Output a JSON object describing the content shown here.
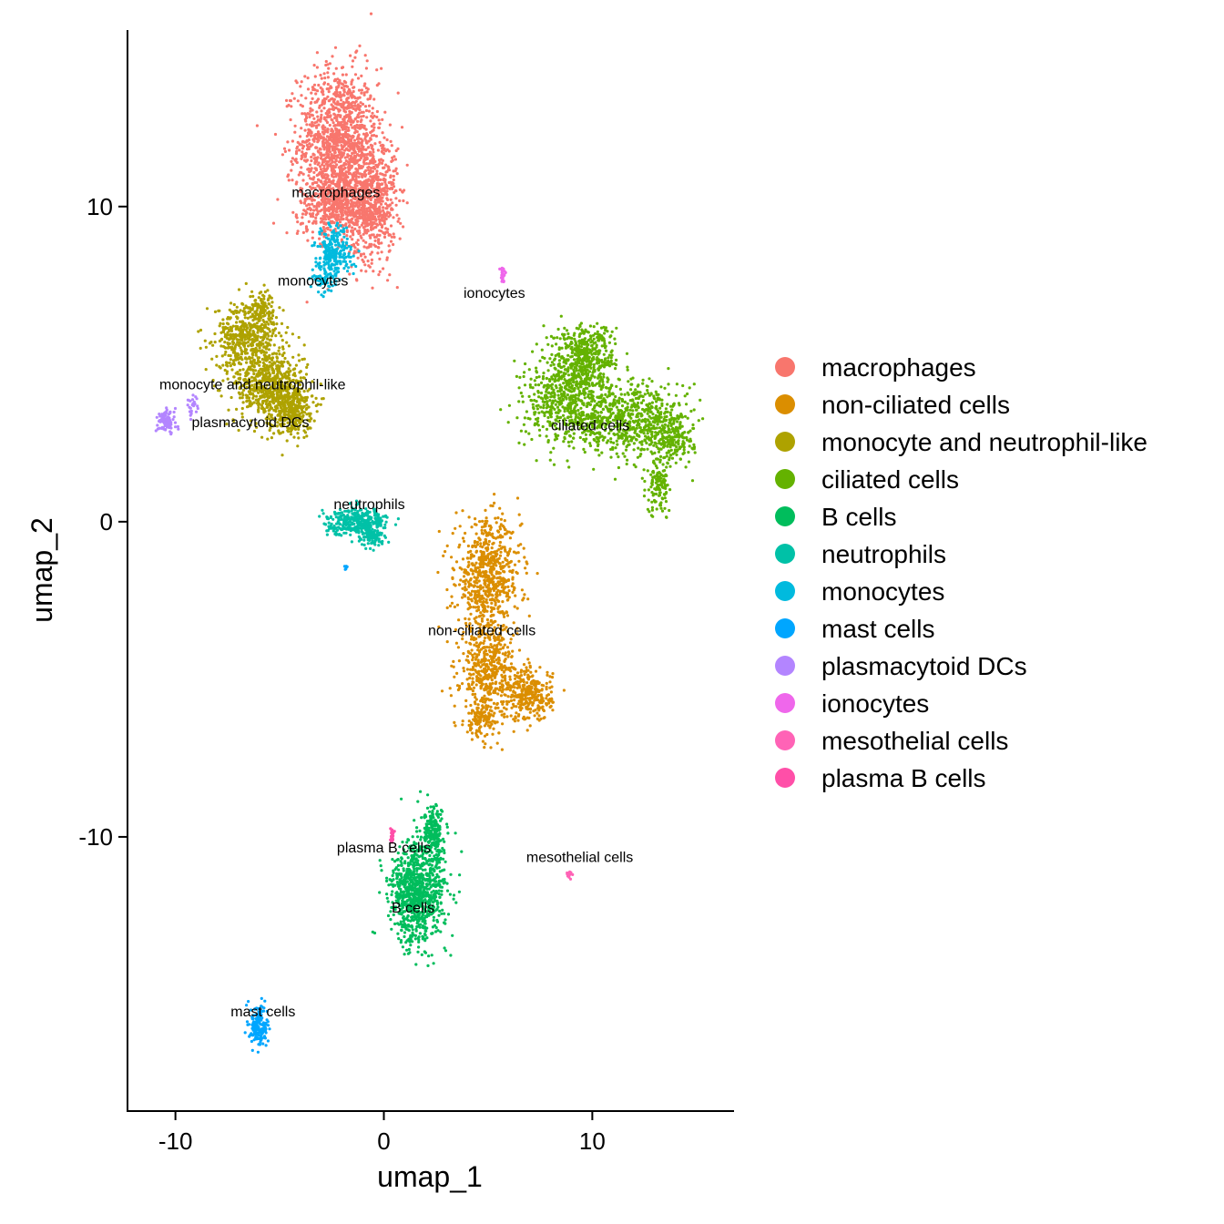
{
  "chart_data": {
    "type": "scatter",
    "title": "",
    "xlabel": "umap_1",
    "ylabel": "umap_2",
    "xlim": [
      -12.3,
      16.8
    ],
    "ylim": [
      -18.7,
      15.6
    ],
    "xticks": [
      -10,
      0,
      10
    ],
    "yticks": [
      -10,
      0,
      10
    ],
    "xtick_labels": [
      "-10",
      "0",
      "10"
    ],
    "ytick_labels": [
      "-10",
      "0",
      "10"
    ],
    "grid": false,
    "legend_position": "right",
    "series": [
      {
        "name": "macrophages",
        "color": "#F8766D",
        "label_at": [
          -2.3,
          10.3
        ],
        "blobs": [
          [
            -2.2,
            12.0,
            1.6,
            2.0,
            1300
          ],
          [
            -0.6,
            10.2,
            1.0,
            1.6,
            700
          ],
          [
            -2.4,
            10.0,
            1.4,
            0.8,
            400
          ]
        ]
      },
      {
        "name": "non-ciliated cells",
        "color": "#DB8E00",
        "label_at": [
          4.7,
          -3.6
        ],
        "blobs": [
          [
            5.0,
            -1.8,
            1.3,
            1.5,
            700
          ],
          [
            5.0,
            -4.7,
            1.1,
            1.2,
            450
          ],
          [
            7.0,
            -5.5,
            0.9,
            0.7,
            300
          ],
          [
            4.6,
            -6.3,
            0.6,
            0.5,
            120
          ]
        ]
      },
      {
        "name": "monocyte and neutrophil-like",
        "color": "#AEA200",
        "label_at": [
          -6.3,
          4.2
        ],
        "blobs": [
          [
            -6.5,
            5.9,
            1.3,
            0.9,
            500
          ],
          [
            -5.5,
            4.3,
            1.4,
            1.0,
            550
          ],
          [
            -4.5,
            3.6,
            0.9,
            0.7,
            300
          ],
          [
            -5.8,
            6.8,
            0.5,
            0.4,
            80
          ]
        ]
      },
      {
        "name": "ciliated cells",
        "color": "#64B200",
        "label_at": [
          9.9,
          2.9
        ],
        "blobs": [
          [
            9.6,
            5.2,
            1.2,
            0.9,
            450
          ],
          [
            9.0,
            3.8,
            1.9,
            1.2,
            650
          ],
          [
            12.0,
            3.2,
            1.7,
            1.0,
            500
          ],
          [
            13.9,
            2.8,
            0.8,
            0.8,
            220
          ],
          [
            13.2,
            1.2,
            0.5,
            0.8,
            130
          ]
        ]
      },
      {
        "name": "B cells",
        "color": "#00BD5C",
        "label_at": [
          1.4,
          -12.4
        ],
        "blobs": [
          [
            1.6,
            -11.8,
            1.1,
            1.3,
            900
          ],
          [
            2.4,
            -9.9,
            0.5,
            0.7,
            200
          ]
        ]
      },
      {
        "name": "neutrophils",
        "color": "#00C1A7",
        "label_at": [
          -0.7,
          0.4
        ],
        "blobs": [
          [
            -1.3,
            0.0,
            1.2,
            0.35,
            350
          ],
          [
            -0.5,
            -0.5,
            0.5,
            0.3,
            80
          ]
        ]
      },
      {
        "name": "monocytes",
        "color": "#00BADE",
        "label_at": [
          -3.4,
          7.5
        ],
        "blobs": [
          [
            -2.4,
            8.5,
            0.7,
            0.7,
            260
          ],
          [
            -2.9,
            7.7,
            0.4,
            0.3,
            50
          ]
        ]
      },
      {
        "name": "mast cells",
        "color": "#00A6FF",
        "label_at": [
          -5.8,
          -15.7
        ],
        "blobs": [
          [
            -6.0,
            -16.0,
            0.35,
            0.55,
            170
          ],
          [
            -1.8,
            -1.5,
            0.1,
            0.15,
            6
          ]
        ]
      },
      {
        "name": "plasmacytoid DCs",
        "color": "#B385FF",
        "label_at": [
          -6.4,
          3.0
        ],
        "blobs": [
          [
            -10.4,
            3.2,
            0.35,
            0.3,
            110
          ],
          [
            -9.2,
            3.8,
            0.25,
            0.3,
            25
          ]
        ]
      },
      {
        "name": "ionocytes",
        "color": "#EF67EB",
        "label_at": [
          5.3,
          7.1
        ],
        "blobs": [
          [
            5.7,
            7.8,
            0.08,
            0.25,
            28
          ]
        ]
      },
      {
        "name": "mesothelial cells",
        "color": "#FF63B6",
        "label_at": [
          9.4,
          -10.8
        ],
        "blobs": [
          [
            8.9,
            -11.2,
            0.1,
            0.15,
            14
          ]
        ]
      },
      {
        "name": "plasma B cells",
        "color": "#FF4FA8",
        "label_at": [
          0.0,
          -10.5
        ],
        "blobs": [
          [
            0.4,
            -9.9,
            0.1,
            0.25,
            24
          ]
        ]
      }
    ]
  }
}
